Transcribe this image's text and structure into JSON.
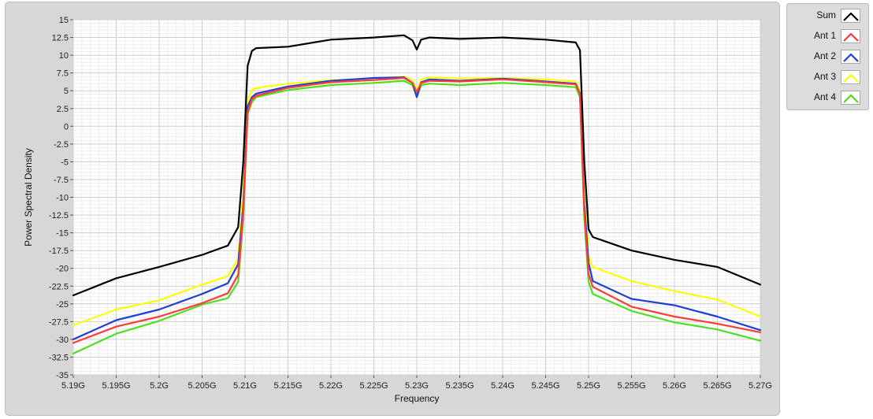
{
  "chart_data": {
    "type": "line",
    "title": "",
    "xlabel": "Frequency",
    "ylabel": "Power Spectral Density",
    "xlim": [
      5.19,
      5.27
    ],
    "ylim": [
      -35,
      15
    ],
    "grid": true,
    "legend_position": "right",
    "x_tick_labels": [
      "5.19G",
      "5.195G",
      "5.2G",
      "5.205G",
      "5.21G",
      "5.215G",
      "5.22G",
      "5.225G",
      "5.23G",
      "5.235G",
      "5.24G",
      "5.245G",
      "5.25G",
      "5.255G",
      "5.26G",
      "5.265G",
      "5.27G"
    ],
    "y_tick_labels": [
      "15",
      "12.5",
      "10",
      "7.5",
      "5",
      "2.5",
      "0",
      "-2.5",
      "-5",
      "-7.5",
      "-10",
      "-12.5",
      "-15",
      "-17.5",
      "-20",
      "-22.5",
      "-25",
      "-27.5",
      "-30",
      "-32.5",
      "-35"
    ],
    "x": [
      5.19,
      5.195,
      5.2,
      5.205,
      5.208,
      5.2092,
      5.2098,
      5.2103,
      5.2108,
      5.2113,
      5.215,
      5.22,
      5.225,
      5.2285,
      5.2295,
      5.23,
      5.2305,
      5.2315,
      5.235,
      5.24,
      5.245,
      5.2485,
      5.249,
      5.2495,
      5.25,
      5.2505,
      5.255,
      5.26,
      5.265,
      5.27
    ],
    "series": [
      {
        "name": "Sum",
        "color": "#000000",
        "values": [
          -23.8,
          -21.4,
          -19.8,
          -18.1,
          -16.8,
          -14.2,
          -5,
          8.5,
          10.6,
          11,
          11.2,
          12.2,
          12.5,
          12.8,
          12.1,
          10.8,
          12.2,
          12.5,
          12.3,
          12.5,
          12.2,
          11.8,
          10.7,
          -5,
          -14.5,
          -15.6,
          -17.5,
          -18.8,
          -19.8,
          -22.3
        ]
      },
      {
        "name": "Ant 1",
        "color": "#ff3b3b",
        "values": [
          -30.5,
          -28.2,
          -26.8,
          -24.9,
          -23.5,
          -20.9,
          -12,
          2,
          3.8,
          4.3,
          5.4,
          6.2,
          6.5,
          6.8,
          6.1,
          4.8,
          6.1,
          6.4,
          6.3,
          6.6,
          6.2,
          5.9,
          4.5,
          -12,
          -20.8,
          -22.6,
          -25.4,
          -26.8,
          -27.8,
          -29.0
        ]
      },
      {
        "name": "Ant 2",
        "color": "#1f3fd9",
        "values": [
          -30.0,
          -27.3,
          -25.8,
          -23.6,
          -22.1,
          -19.4,
          -11,
          2.8,
          4.1,
          4.6,
          5.6,
          6.4,
          6.8,
          6.9,
          6.1,
          4.1,
          6.2,
          6.6,
          6.4,
          6.7,
          6.3,
          6.0,
          4.6,
          -11,
          -19.2,
          -21.8,
          -24.3,
          -25.2,
          -26.8,
          -28.7
        ]
      },
      {
        "name": "Ant 3",
        "color": "#ffff00",
        "values": [
          -28.0,
          -25.8,
          -24.5,
          -22.3,
          -21.1,
          -18.6,
          -9,
          3.6,
          5.1,
          5.4,
          6.0,
          6.5,
          6.7,
          7.0,
          6.5,
          5.0,
          6.6,
          6.9,
          6.7,
          6.8,
          6.6,
          6.3,
          5.0,
          -9,
          -18.4,
          -19.8,
          -21.8,
          -23.2,
          -24.4,
          -26.8
        ]
      },
      {
        "name": "Ant 4",
        "color": "#4ee020",
        "values": [
          -32.0,
          -29.2,
          -27.4,
          -25.1,
          -24.2,
          -21.9,
          -13,
          1.7,
          3.4,
          4.1,
          5.1,
          5.8,
          6.1,
          6.4,
          5.8,
          4.1,
          5.8,
          6.0,
          5.8,
          6.1,
          5.8,
          5.5,
          4.1,
          -13,
          -21.9,
          -23.6,
          -26.0,
          -27.6,
          -28.6,
          -30.2
        ]
      }
    ]
  }
}
